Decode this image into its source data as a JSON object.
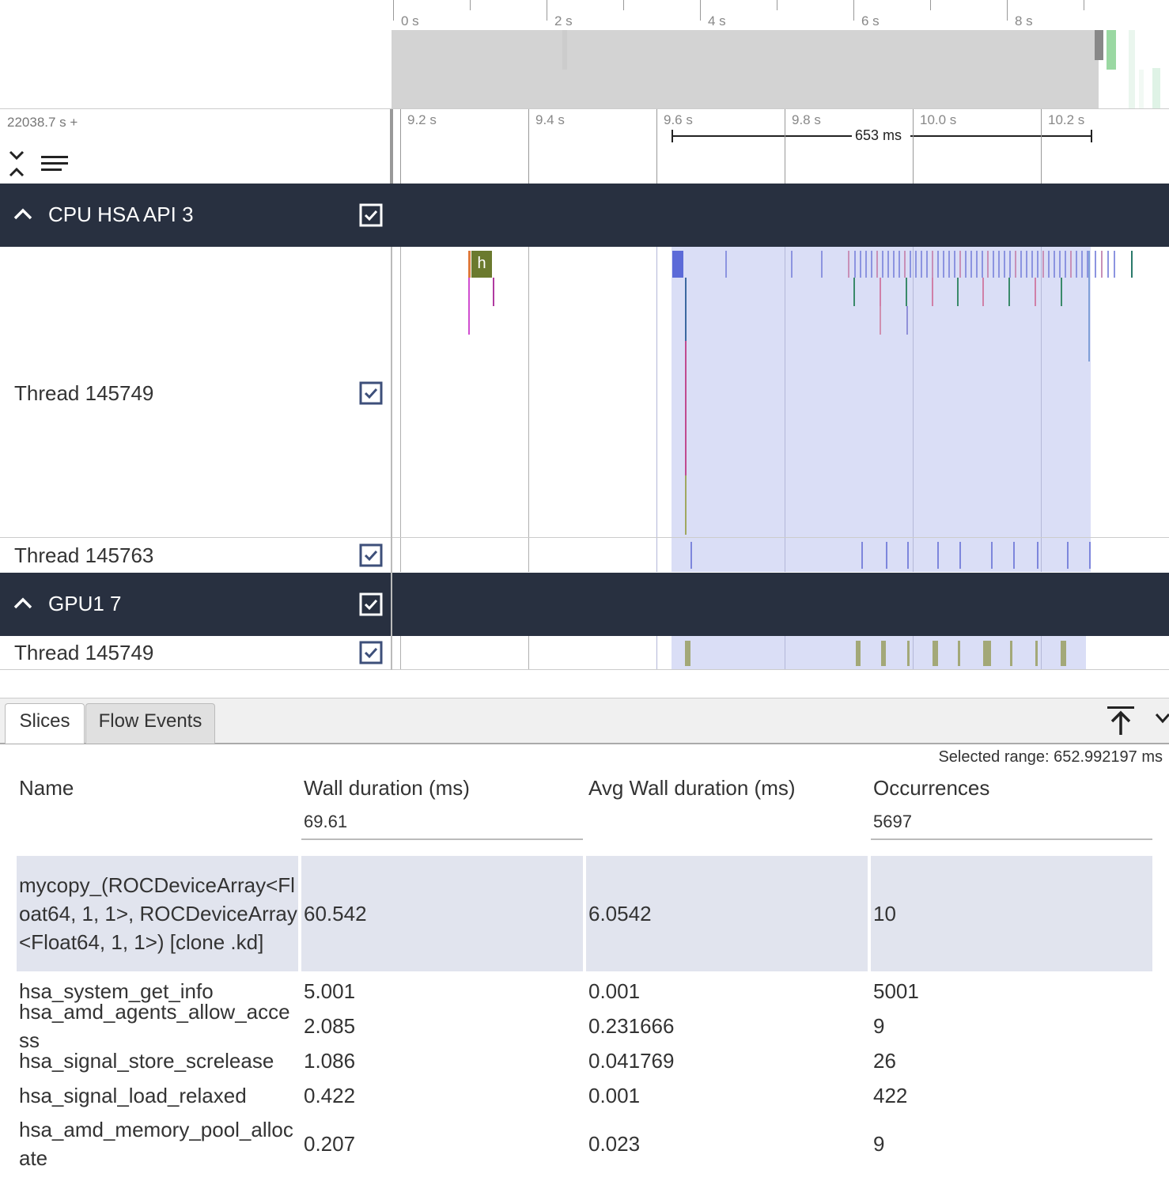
{
  "overview": {
    "ticks": [
      "0 s",
      "2 s",
      "4 s",
      "6 s",
      "8 s"
    ]
  },
  "axis": {
    "offset_label": "22038.7 s +",
    "ticks": [
      "9.2 s",
      "9.4 s",
      "9.6 s",
      "9.8 s",
      "10.0 s",
      "10.2 s"
    ],
    "measure_label": "653 ms"
  },
  "tracks": {
    "group1": {
      "title": "CPU HSA API 3"
    },
    "thread_a": {
      "name": "Thread 145749",
      "slice_label": "h"
    },
    "thread_b": {
      "name": "Thread 145763"
    },
    "group2": {
      "title": "GPU1 7"
    },
    "thread_c": {
      "name": "Thread 145749"
    }
  },
  "colors": {
    "header_bg": "#283040",
    "selection": "#dadef6",
    "slice_olive": "#6b7a2e",
    "gpu_slice": "#a3a878",
    "cpu_slice": "#7d86dc"
  },
  "panel": {
    "tabs": [
      "Slices",
      "Flow Events"
    ],
    "selected_range": "Selected range: 652.992197 ms",
    "columns": [
      "Name",
      "Wall duration (ms)",
      "Avg Wall duration (ms)",
      "Occurrences"
    ],
    "totals": {
      "wall": "69.61",
      "occurrences": "5697"
    },
    "rows": [
      {
        "name": "mycopy_(ROCDeviceArray<Float64, 1, 1>, ROCDeviceArray<Float64, 1, 1>) [clone .kd]",
        "wall": "60.542",
        "avg": "6.0542",
        "occ": "10"
      },
      {
        "name": "hsa_system_get_info",
        "wall": "5.001",
        "avg": "0.001",
        "occ": "5001"
      },
      {
        "name": "hsa_amd_agents_allow_access",
        "wall": "2.085",
        "avg": "0.231666",
        "occ": "9"
      },
      {
        "name": "hsa_signal_store_screlease",
        "wall": "1.086",
        "avg": "0.041769",
        "occ": "26"
      },
      {
        "name": "hsa_signal_load_relaxed",
        "wall": "0.422",
        "avg": "0.001",
        "occ": "422"
      },
      {
        "name": "hsa_amd_memory_pool_allocate",
        "wall": "0.207",
        "avg": "0.023",
        "occ": "9"
      }
    ]
  }
}
